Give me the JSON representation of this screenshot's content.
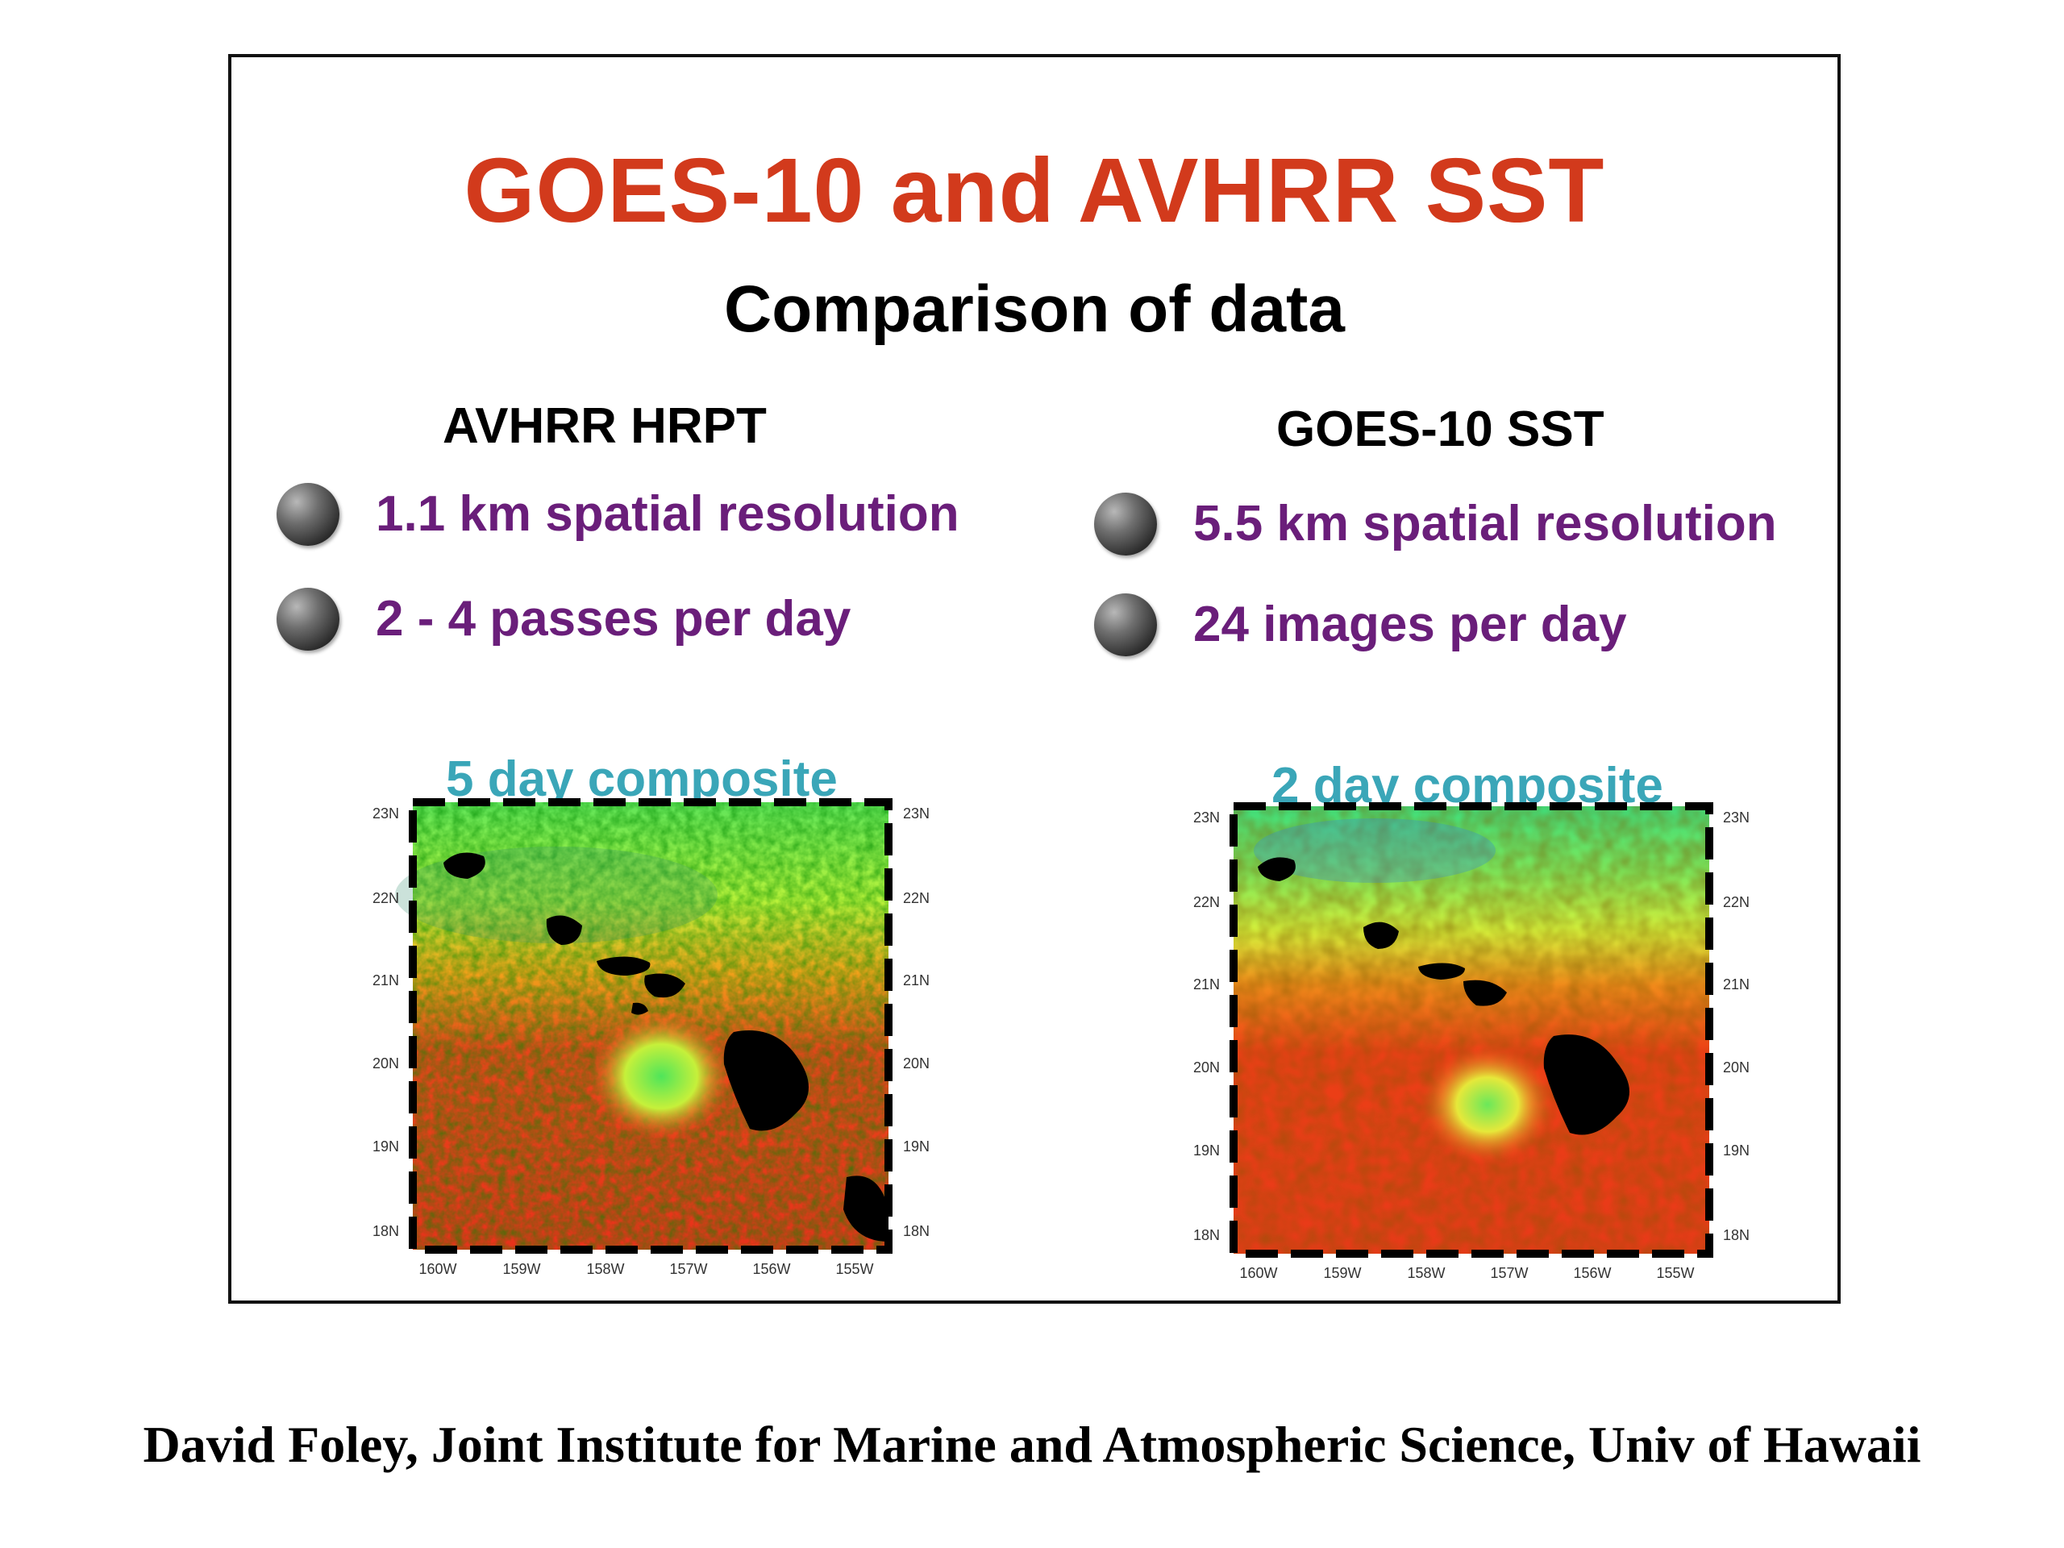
{
  "title": "GOES-10 and AVHRR SST",
  "subtitle": "Comparison of data",
  "colors": {
    "title": "#d23a1c",
    "bullet_text": "#6a1e7a",
    "composite_label": "#3aa6b8",
    "frame": "#111111"
  },
  "left_column": {
    "heading": "AVHRR HRPT",
    "bullets": [
      "1.1 km spatial resolution",
      "2 - 4 passes per day"
    ],
    "composite_label": "5 day composite"
  },
  "right_column": {
    "heading": "GOES-10 SST",
    "bullets": [
      "5.5 km spatial resolution",
      "24 images per day"
    ],
    "composite_label": "2 day composite"
  },
  "map_axes": {
    "lat_labels": [
      "23N",
      "22N",
      "21N",
      "20N",
      "19N",
      "18N"
    ],
    "lon_labels": [
      "160W",
      "159W",
      "158W",
      "157W",
      "156W",
      "155W"
    ]
  },
  "footer": "David Foley, Joint Institute for Marine and Atmospheric Science, Univ of Hawaii"
}
